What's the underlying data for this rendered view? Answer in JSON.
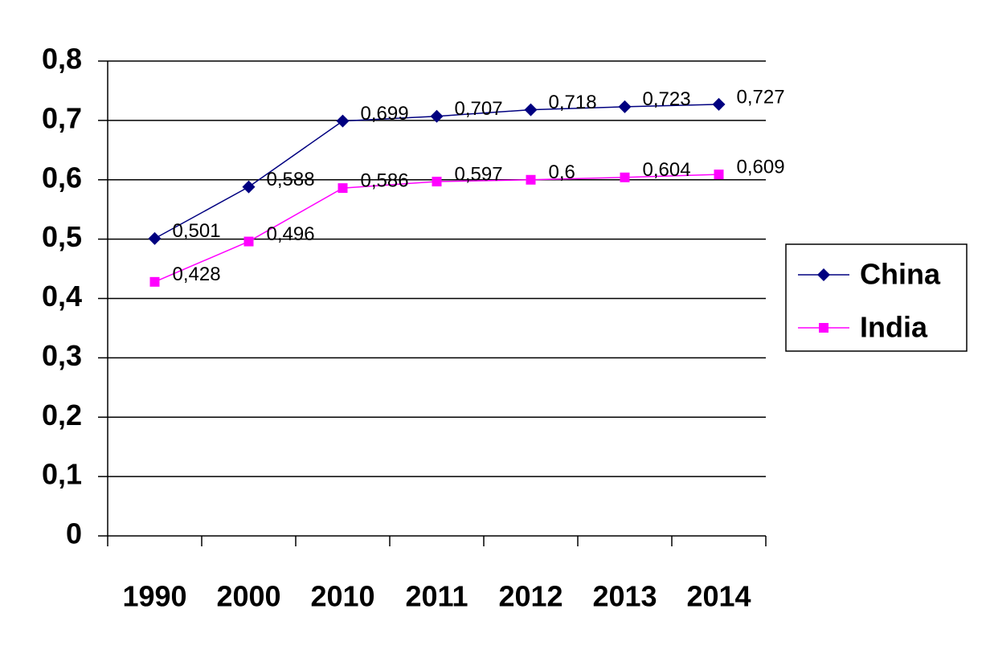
{
  "chart_data": {
    "type": "line",
    "categories": [
      "1990",
      "2000",
      "2010",
      "2011",
      "2012",
      "2013",
      "2014"
    ],
    "series": [
      {
        "name": "China",
        "color": "#000080",
        "marker": "diamond",
        "values": [
          0.501,
          0.588,
          0.699,
          0.707,
          0.718,
          0.723,
          0.727
        ],
        "value_labels": [
          "0,501",
          "0,588",
          "0,699",
          "0,707",
          "0,718",
          "0,723",
          "0,727"
        ]
      },
      {
        "name": "India",
        "color": "#ff00ff",
        "marker": "square",
        "values": [
          0.428,
          0.496,
          0.586,
          0.597,
          0.6,
          0.604,
          0.609
        ],
        "value_labels": [
          "0,428",
          "0,496",
          "0,586",
          "0,597",
          "0,6",
          "0,604",
          "0,609"
        ]
      }
    ],
    "ylim": [
      0,
      0.8
    ],
    "yticks": [
      0,
      {
        "value": 0.1,
        "label": "0,1"
      },
      {
        "value": 0.2,
        "label": "0,2"
      },
      {
        "value": 0.3,
        "label": "0,3"
      },
      {
        "value": 0.4,
        "label": "0,4"
      },
      {
        "value": 0.5,
        "label": "0,5"
      },
      {
        "value": 0.6,
        "label": "0,6"
      },
      {
        "value": 0.7,
        "label": "0,7"
      },
      {
        "value": 0.8,
        "label": "0,8"
      }
    ],
    "grid": true,
    "legend": "right"
  }
}
